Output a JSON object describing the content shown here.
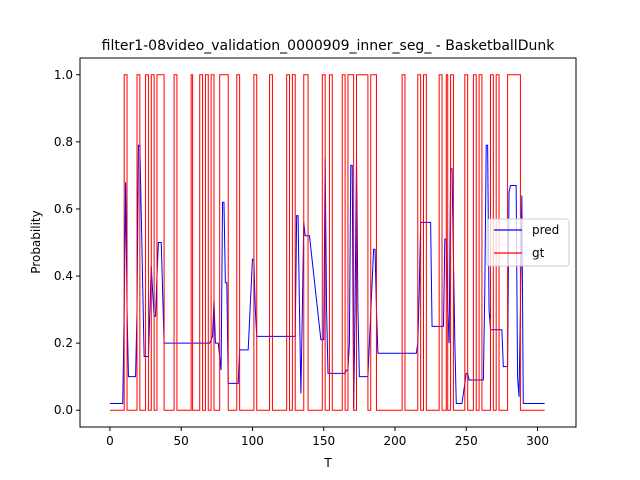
{
  "chart_data": {
    "type": "line",
    "title": "filter1-08video_validation_0000909_inner_seg_ - BasketballDunk",
    "xlabel": "T",
    "ylabel": "Probability",
    "xlim": [
      -21,
      327
    ],
    "ylim": [
      -0.05,
      1.05
    ],
    "xticks": [
      0,
      50,
      100,
      150,
      200,
      250,
      300
    ],
    "yticks": [
      0.0,
      0.2,
      0.4,
      0.6,
      0.8,
      1.0
    ],
    "ytick_labels": [
      "0.0",
      "0.2",
      "0.4",
      "0.6",
      "0.8",
      "1.0"
    ],
    "grid": false,
    "legend_position": "center-right",
    "series": [
      {
        "name": "pred",
        "color": "#0000ff",
        "step": false,
        "x": [
          0,
          9,
          10,
          11,
          12,
          13,
          14,
          18,
          19,
          20,
          21,
          24,
          27,
          29,
          30,
          31,
          32,
          33,
          34,
          35,
          36,
          38,
          40,
          60,
          65,
          67,
          70,
          72,
          73,
          74,
          75,
          76,
          78,
          79,
          80,
          81,
          82,
          83,
          84,
          85,
          90,
          91,
          93,
          97,
          100,
          101,
          102,
          103,
          104,
          130,
          131,
          132,
          133,
          134,
          135,
          136,
          137,
          140,
          148,
          149,
          150,
          151,
          152,
          153,
          160,
          161,
          165,
          166,
          167,
          168,
          169,
          170,
          171,
          172,
          173,
          174,
          175,
          176,
          180,
          181,
          185,
          186,
          187,
          188,
          189,
          190,
          200,
          215,
          216,
          217,
          218,
          219,
          220,
          224,
          225,
          226,
          227,
          228,
          234,
          235,
          236,
          237,
          238,
          239,
          240,
          242,
          243,
          244,
          246,
          247,
          250,
          251,
          252,
          253,
          262,
          263,
          264,
          265,
          266,
          267,
          268,
          275,
          276,
          278,
          279,
          280,
          281,
          282,
          285,
          286,
          287,
          288,
          289,
          290,
          305
        ],
        "y": [
          0.02,
          0.02,
          0.3,
          0.68,
          0.3,
          0.1,
          0.1,
          0.1,
          0.3,
          0.79,
          0.79,
          0.16,
          0.16,
          0.43,
          0.35,
          0.28,
          0.28,
          0.4,
          0.5,
          0.5,
          0.5,
          0.2,
          0.2,
          0.2,
          0.2,
          0.2,
          0.2,
          0.22,
          0.33,
          0.2,
          0.2,
          0.2,
          0.12,
          0.62,
          0.62,
          0.38,
          0.38,
          0.08,
          0.08,
          0.08,
          0.08,
          0.18,
          0.18,
          0.18,
          0.45,
          0.45,
          0.3,
          0.22,
          0.22,
          0.22,
          0.58,
          0.58,
          0.3,
          0.05,
          0.3,
          0.56,
          0.52,
          0.52,
          0.21,
          0.21,
          0.21,
          0.75,
          0.3,
          0.11,
          0.11,
          0.11,
          0.11,
          0.12,
          0.12,
          0.2,
          0.73,
          0.73,
          0.0,
          0.3,
          0.76,
          0.3,
          0.1,
          0.1,
          0.1,
          0.1,
          0.48,
          0.48,
          0.3,
          0.17,
          0.17,
          0.17,
          0.17,
          0.17,
          0.2,
          0.35,
          0.56,
          0.56,
          0.56,
          0.56,
          0.56,
          0.25,
          0.25,
          0.25,
          0.25,
          0.51,
          0.51,
          0.3,
          0.2,
          0.72,
          0.72,
          0.2,
          0.02,
          0.02,
          0.02,
          0.02,
          0.11,
          0.11,
          0.09,
          0.09,
          0.09,
          0.35,
          0.79,
          0.79,
          0.3,
          0.24,
          0.24,
          0.24,
          0.13,
          0.13,
          0.13,
          0.65,
          0.67,
          0.67,
          0.67,
          0.1,
          0.04,
          0.3,
          0.64,
          0.02,
          0.02
        ]
      },
      {
        "name": "gt",
        "color": "#ff0000",
        "step": true,
        "x": [
          0,
          10,
          12,
          19,
          21,
          25,
          27,
          29,
          31,
          33,
          38,
          45,
          47,
          57,
          58,
          63,
          65,
          67,
          69,
          71,
          73,
          77,
          83,
          89,
          91,
          101,
          103,
          112,
          114,
          124,
          126,
          128,
          130,
          136,
          139,
          149,
          151,
          154,
          156,
          163,
          165,
          167,
          171,
          173,
          181,
          183,
          187,
          205,
          207,
          216,
          218,
          220,
          222,
          231,
          233,
          236,
          237,
          239,
          241,
          249,
          251,
          255,
          257,
          259,
          261,
          267,
          269,
          271,
          273,
          279,
          280,
          288,
          305
        ],
        "y": [
          0,
          1,
          0,
          1,
          0,
          1,
          0,
          1,
          0,
          1,
          0,
          1,
          0,
          1,
          0,
          1,
          0,
          1,
          0,
          1,
          0,
          1,
          0,
          1,
          0,
          1,
          0,
          1,
          0,
          1,
          0,
          1,
          0,
          1,
          0,
          1,
          0,
          1,
          0,
          1,
          0,
          1,
          0,
          1,
          0,
          1,
          0,
          1,
          0,
          1,
          0,
          1,
          0,
          1,
          0,
          1,
          0,
          1,
          0,
          1,
          0,
          1,
          0,
          1,
          0,
          1,
          0,
          1,
          0,
          1,
          1,
          0,
          0
        ]
      }
    ]
  }
}
